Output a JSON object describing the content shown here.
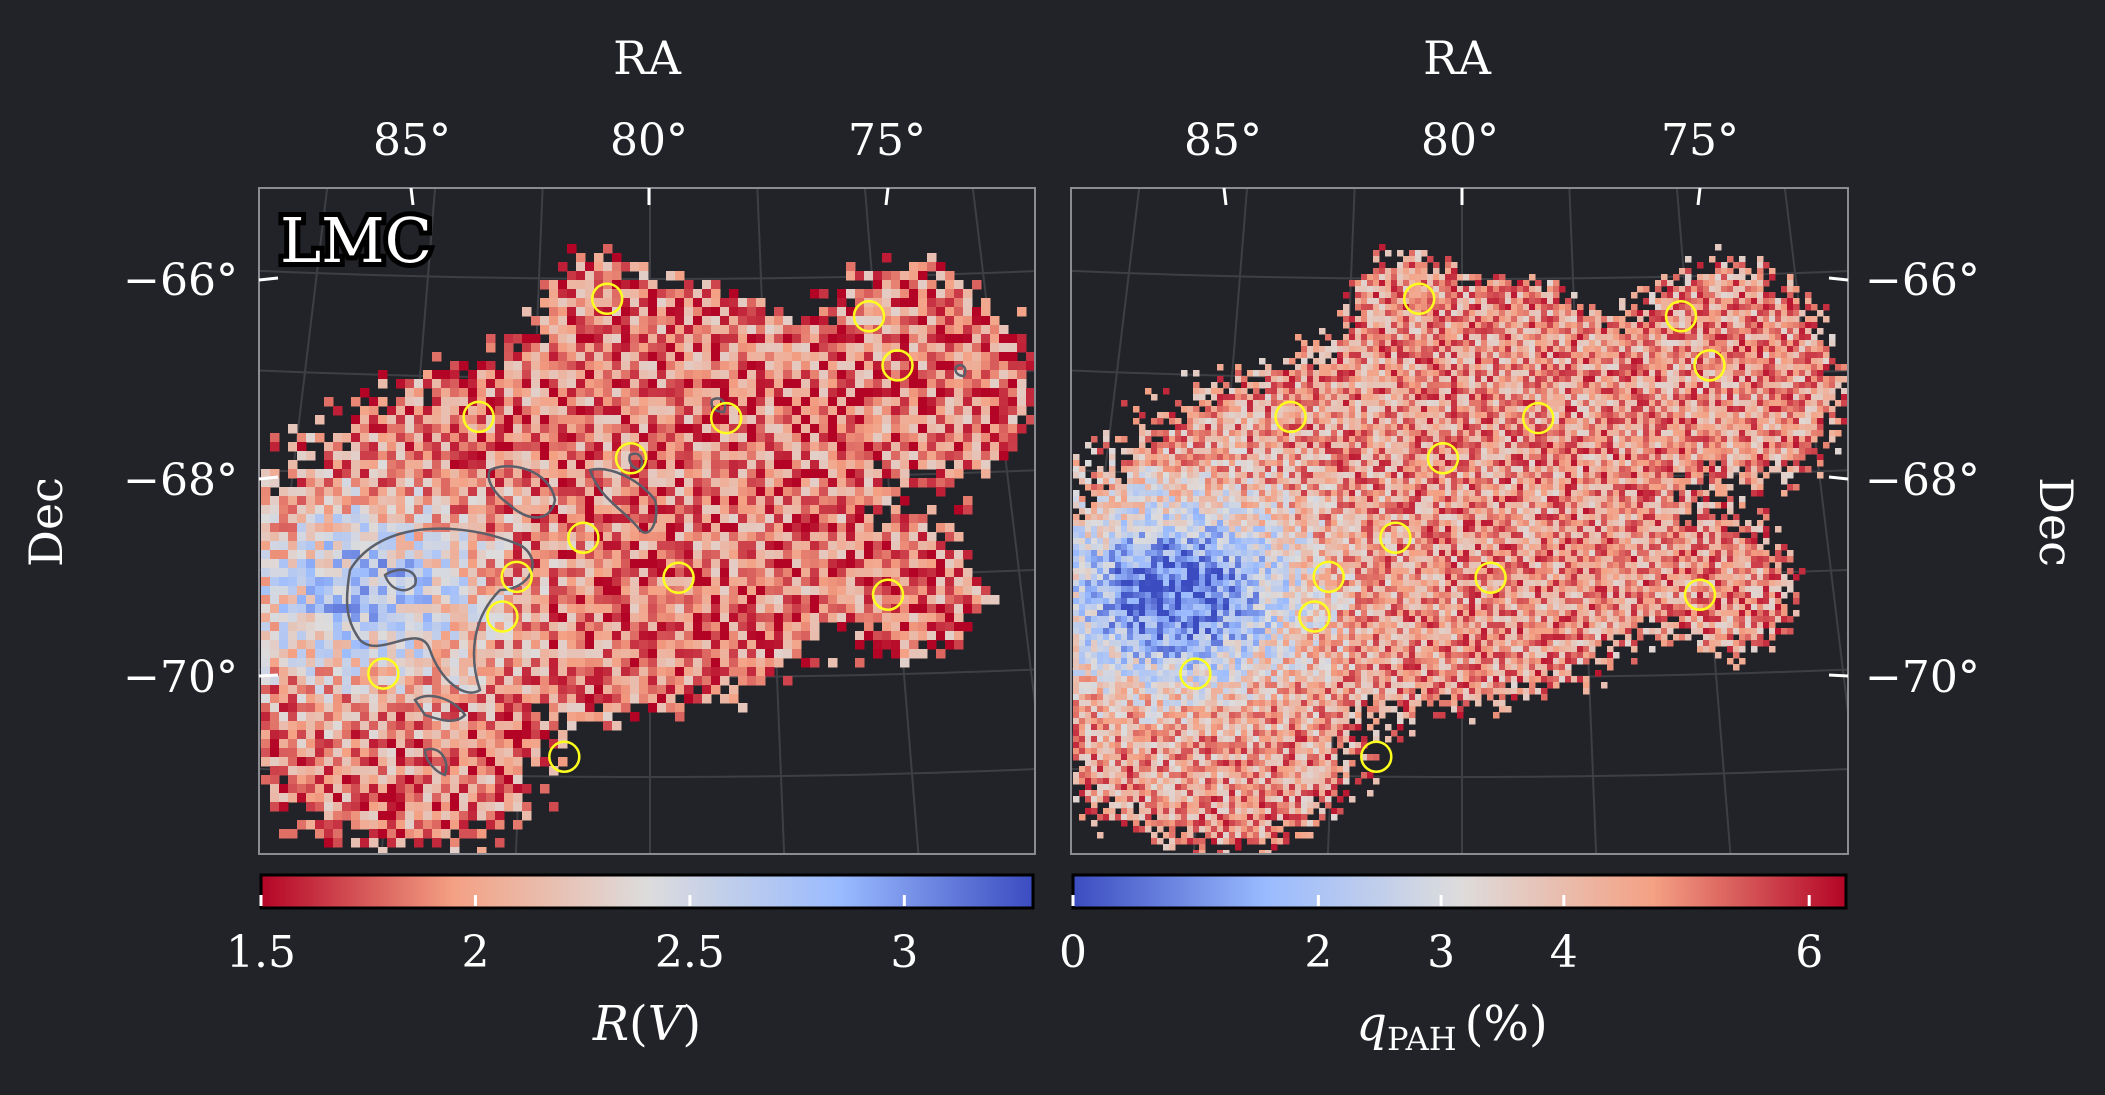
{
  "chart_data": [
    {
      "type": "heatmap",
      "panel": "left",
      "label": "LMC",
      "xlabel": "RA",
      "ylabel": "Dec",
      "x_ticks": [
        "85°",
        "80°",
        "75°"
      ],
      "y_ticks": [
        "−66°",
        "−68°",
        "−70°"
      ],
      "colorbar": {
        "label": "R(V)",
        "label_main": "R",
        "label_arg": "V",
        "range": [
          1.5,
          3.3
        ],
        "ticks": [
          1.5,
          2,
          2.5,
          3
        ],
        "tick_labels": [
          "1.5",
          "2",
          "2.5",
          "3"
        ],
        "colormap": "coolwarm_r",
        "colors": [
          "#b40426",
          "#f4a184",
          "#dddcdc",
          "#9abbff",
          "#3b4cc0"
        ]
      },
      "circles": [
        {
          "ra": 80.9,
          "dec": -66.2
        },
        {
          "ra": 75.4,
          "dec": -66.4
        },
        {
          "ra": 74.8,
          "dec": -66.9
        },
        {
          "ra": 78.4,
          "dec": -67.4
        },
        {
          "ra": 83.6,
          "dec": -67.4
        },
        {
          "ra": 80.4,
          "dec": -67.8
        },
        {
          "ra": 81.4,
          "dec": -68.6
        },
        {
          "ra": 82.8,
          "dec": -69.0
        },
        {
          "ra": 79.4,
          "dec": -69.0
        },
        {
          "ra": 83.1,
          "dec": -69.4
        },
        {
          "ra": 75.0,
          "dec": -69.2
        },
        {
          "ra": 85.6,
          "dec": -70.0
        },
        {
          "ra": 81.8,
          "dec": -70.8
        }
      ],
      "contours": "grey contours around the highest R(V) regions"
    },
    {
      "type": "heatmap",
      "panel": "right",
      "xlabel": "RA",
      "ylabel": "Dec",
      "x_ticks": [
        "85°",
        "80°",
        "75°"
      ],
      "y_ticks": [
        "−66°",
        "−68°",
        "−70°"
      ],
      "colorbar": {
        "label": "qPAH (%)",
        "label_main": "q",
        "label_sub": "PAH",
        "label_unit": "(%)",
        "range": [
          0,
          6.3
        ],
        "ticks": [
          0,
          2,
          3,
          4,
          6
        ],
        "tick_labels": [
          "0",
          "2",
          "3",
          "4",
          "6"
        ],
        "colormap": "coolwarm",
        "colors": [
          "#3b4cc0",
          "#9abbff",
          "#dddcdc",
          "#f4a184",
          "#b40426"
        ]
      },
      "circles": [
        {
          "ra": 80.9,
          "dec": -66.2
        },
        {
          "ra": 75.4,
          "dec": -66.4
        },
        {
          "ra": 74.8,
          "dec": -66.9
        },
        {
          "ra": 78.4,
          "dec": -67.4
        },
        {
          "ra": 83.6,
          "dec": -67.4
        },
        {
          "ra": 80.4,
          "dec": -67.8
        },
        {
          "ra": 81.4,
          "dec": -68.6
        },
        {
          "ra": 82.8,
          "dec": -69.0
        },
        {
          "ra": 79.4,
          "dec": -69.0
        },
        {
          "ra": 83.1,
          "dec": -69.4
        },
        {
          "ra": 75.0,
          "dec": -69.2
        },
        {
          "ra": 85.6,
          "dec": -70.0
        },
        {
          "ra": 81.8,
          "dec": -70.8
        }
      ]
    }
  ]
}
